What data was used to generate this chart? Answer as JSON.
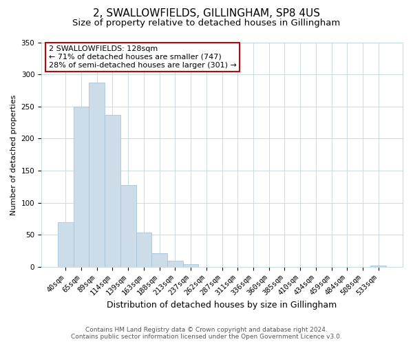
{
  "title": "2, SWALLOWFIELDS, GILLINGHAM, SP8 4US",
  "subtitle": "Size of property relative to detached houses in Gillingham",
  "xlabel": "Distribution of detached houses by size in Gillingham",
  "ylabel": "Number of detached properties",
  "bar_color": "#ccdce8",
  "bar_edge_color": "#a8c4d8",
  "categories": [
    "40sqm",
    "65sqm",
    "89sqm",
    "114sqm",
    "139sqm",
    "163sqm",
    "188sqm",
    "213sqm",
    "237sqm",
    "262sqm",
    "287sqm",
    "311sqm",
    "336sqm",
    "360sqm",
    "385sqm",
    "410sqm",
    "434sqm",
    "459sqm",
    "484sqm",
    "508sqm",
    "533sqm"
  ],
  "values": [
    70,
    250,
    287,
    237,
    128,
    54,
    22,
    10,
    4,
    0,
    0,
    0,
    0,
    0,
    0,
    0,
    0,
    0,
    0,
    0,
    2
  ],
  "ylim": [
    0,
    350
  ],
  "yticks": [
    0,
    50,
    100,
    150,
    200,
    250,
    300,
    350
  ],
  "annotation_title": "2 SWALLOWFIELDS: 128sqm",
  "annotation_line1": "← 71% of detached houses are smaller (747)",
  "annotation_line2": "28% of semi-detached houses are larger (301) →",
  "footer_line1": "Contains HM Land Registry data © Crown copyright and database right 2024.",
  "footer_line2": "Contains public sector information licensed under the Open Government Licence v3.0.",
  "background_color": "#ffffff",
  "grid_color": "#c0d4e4",
  "title_fontsize": 11,
  "subtitle_fontsize": 9.5,
  "xlabel_fontsize": 9,
  "ylabel_fontsize": 8,
  "tick_fontsize": 7.5,
  "annotation_fontsize": 8,
  "footer_fontsize": 6.5
}
